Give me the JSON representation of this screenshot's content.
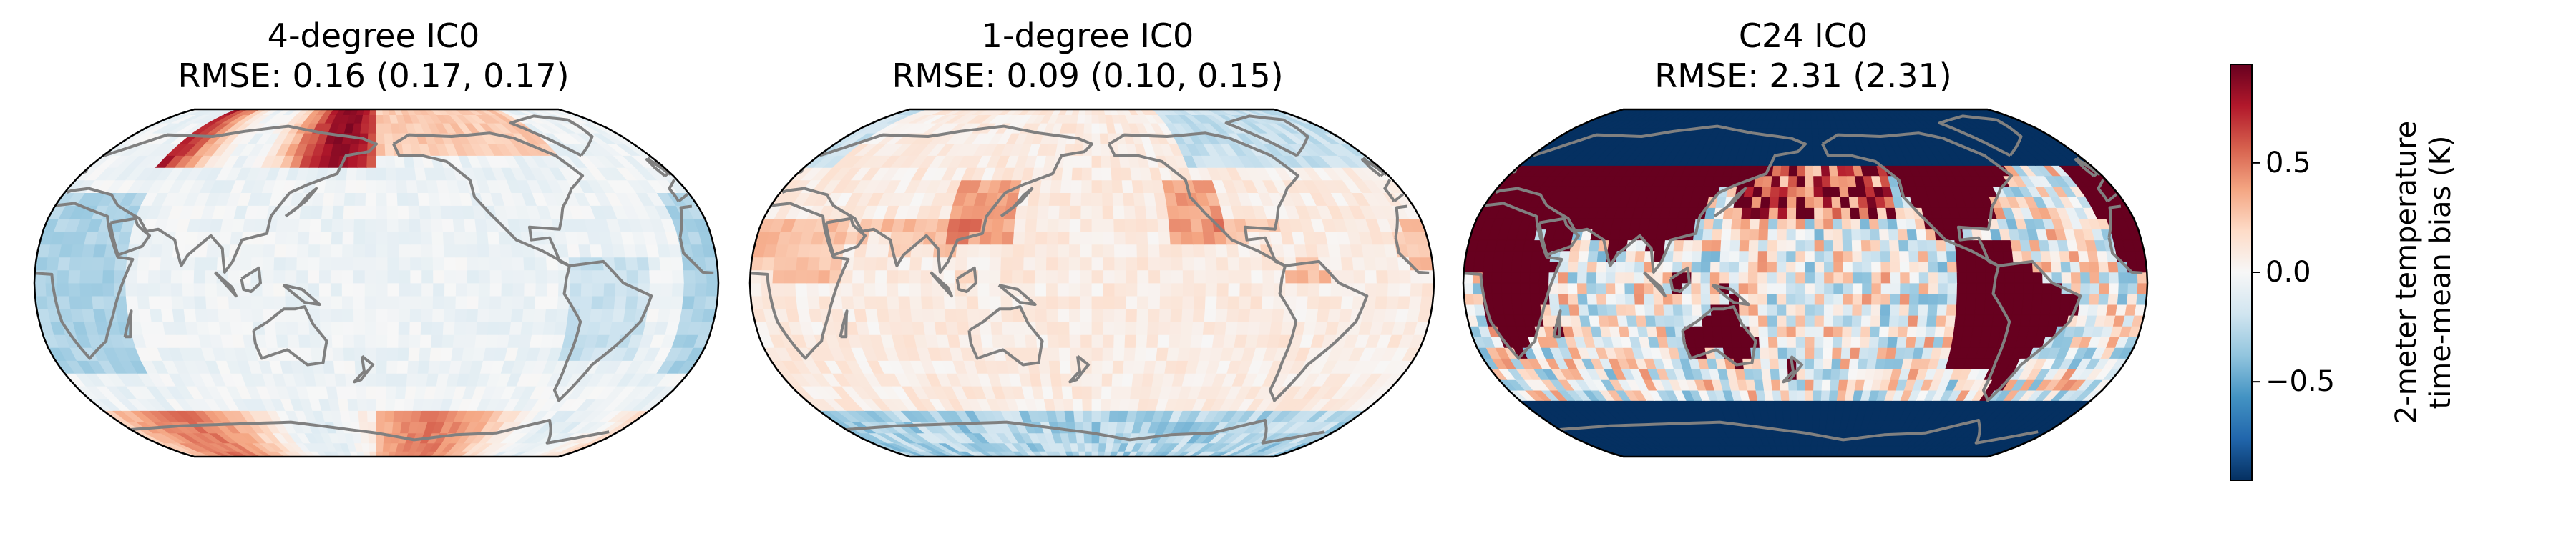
{
  "panels": [
    {
      "title": "4-degree IC0",
      "subtitle": "RMSE: 0.16 (0.17, 0.17)",
      "bias_level": 0.25
    },
    {
      "title": "1-degree IC0",
      "subtitle": "RMSE: 0.09 (0.10, 0.15)",
      "bias_level": 0.18
    },
    {
      "title": "C24 IC0",
      "subtitle": "RMSE: 2.31 (2.31)",
      "bias_level": 1.0
    }
  ],
  "colorbar": {
    "label_line1": "2-meter temperature",
    "label_line2": "time-mean bias (K)",
    "ticks": [
      {
        "value": 0.5,
        "label": "0.5"
      },
      {
        "value": 0.0,
        "label": "0.0"
      },
      {
        "value": -0.5,
        "label": "−0.5"
      }
    ],
    "range": [
      -0.95,
      0.95
    ],
    "colormap": "RdBu_r",
    "colors": {
      "low": "#053061",
      "mid": "#f7f7f7",
      "high": "#67001f"
    }
  },
  "map": {
    "projection": "Robinson",
    "central_longitude": 180,
    "coastline_color": "#808080"
  }
}
